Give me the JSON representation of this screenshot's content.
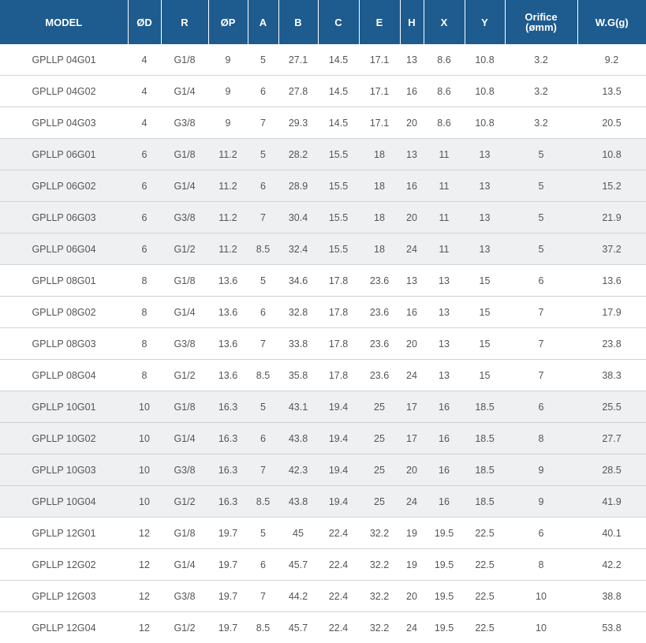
{
  "headers": [
    "MODEL",
    "ØD",
    "R",
    "ØP",
    "A",
    "B",
    "C",
    "E",
    "H",
    "X",
    "Y",
    "Orifice\n(ømm)",
    "W.G(g)"
  ],
  "rows": [
    {
      "shade": false,
      "cells": [
        "GPLLP 04G01",
        "4",
        "G1/8",
        "9",
        "5",
        "27.1",
        "14.5",
        "17.1",
        "13",
        "8.6",
        "10.8",
        "3.2",
        "9.2"
      ]
    },
    {
      "shade": false,
      "cells": [
        "GPLLP 04G02",
        "4",
        "G1/4",
        "9",
        "6",
        "27.8",
        "14.5",
        "17.1",
        "16",
        "8.6",
        "10.8",
        "3.2",
        "13.5"
      ]
    },
    {
      "shade": false,
      "cells": [
        "GPLLP 04G03",
        "4",
        "G3/8",
        "9",
        "7",
        "29.3",
        "14.5",
        "17.1",
        "20",
        "8.6",
        "10.8",
        "3.2",
        "20.5"
      ]
    },
    {
      "shade": true,
      "cells": [
        "GPLLP 06G01",
        "6",
        "G1/8",
        "11.2",
        "5",
        "28.2",
        "15.5",
        "18",
        "13",
        "11",
        "13",
        "5",
        "10.8"
      ]
    },
    {
      "shade": true,
      "cells": [
        "GPLLP 06G02",
        "6",
        "G1/4",
        "11.2",
        "6",
        "28.9",
        "15.5",
        "18",
        "16",
        "11",
        "13",
        "5",
        "15.2"
      ]
    },
    {
      "shade": true,
      "cells": [
        "GPLLP 06G03",
        "6",
        "G3/8",
        "11.2",
        "7",
        "30.4",
        "15.5",
        "18",
        "20",
        "11",
        "13",
        "5",
        "21.9"
      ]
    },
    {
      "shade": true,
      "cells": [
        "GPLLP 06G04",
        "6",
        "G1/2",
        "11.2",
        "8.5",
        "32.4",
        "15.5",
        "18",
        "24",
        "11",
        "13",
        "5",
        "37.2"
      ]
    },
    {
      "shade": false,
      "cells": [
        "GPLLP 08G01",
        "8",
        "G1/8",
        "13.6",
        "5",
        "34.6",
        "17.8",
        "23.6",
        "13",
        "13",
        "15",
        "6",
        "13.6"
      ]
    },
    {
      "shade": false,
      "cells": [
        "GPLLP 08G02",
        "8",
        "G1/4",
        "13.6",
        "6",
        "32.8",
        "17.8",
        "23.6",
        "16",
        "13",
        "15",
        "7",
        "17.9"
      ]
    },
    {
      "shade": false,
      "cells": [
        "GPLLP 08G03",
        "8",
        "G3/8",
        "13.6",
        "7",
        "33.8",
        "17.8",
        "23.6",
        "20",
        "13",
        "15",
        "7",
        "23.8"
      ]
    },
    {
      "shade": false,
      "cells": [
        "GPLLP 08G04",
        "8",
        "G1/2",
        "13.6",
        "8.5",
        "35.8",
        "17.8",
        "23.6",
        "24",
        "13",
        "15",
        "7",
        "38.3"
      ]
    },
    {
      "shade": true,
      "cells": [
        "GPLLP 10G01",
        "10",
        "G1/8",
        "16.3",
        "5",
        "43.1",
        "19.4",
        "25",
        "17",
        "16",
        "18.5",
        "6",
        "25.5"
      ]
    },
    {
      "shade": true,
      "cells": [
        "GPLLP 10G02",
        "10",
        "G1/4",
        "16.3",
        "6",
        "43.8",
        "19.4",
        "25",
        "17",
        "16",
        "18.5",
        "8",
        "27.7"
      ]
    },
    {
      "shade": true,
      "cells": [
        "GPLLP 10G03",
        "10",
        "G3/8",
        "16.3",
        "7",
        "42.3",
        "19.4",
        "25",
        "20",
        "16",
        "18.5",
        "9",
        "28.5"
      ]
    },
    {
      "shade": true,
      "cells": [
        "GPLLP 10G04",
        "10",
        "G1/2",
        "16.3",
        "8.5",
        "43.8",
        "19.4",
        "25",
        "24",
        "16",
        "18.5",
        "9",
        "41.9"
      ]
    },
    {
      "shade": false,
      "cells": [
        "GPLLP 12G01",
        "12",
        "G1/8",
        "19.7",
        "5",
        "45",
        "22.4",
        "32.2",
        "19",
        "19.5",
        "22.5",
        "6",
        "40.1"
      ]
    },
    {
      "shade": false,
      "cells": [
        "GPLLP 12G02",
        "12",
        "G1/4",
        "19.7",
        "6",
        "45.7",
        "22.4",
        "32.2",
        "19",
        "19.5",
        "22.5",
        "8",
        "42.2"
      ]
    },
    {
      "shade": false,
      "cells": [
        "GPLLP 12G03",
        "12",
        "G3/8",
        "19.7",
        "7",
        "44.2",
        "22.4",
        "32.2",
        "20",
        "19.5",
        "22.5",
        "10",
        "38.8"
      ]
    },
    {
      "shade": false,
      "cells": [
        "GPLLP 12G04",
        "12",
        "G1/2",
        "19.7",
        "8.5",
        "45.7",
        "22.4",
        "32.2",
        "24",
        "19.5",
        "22.5",
        "10",
        "53.8"
      ]
    }
  ]
}
